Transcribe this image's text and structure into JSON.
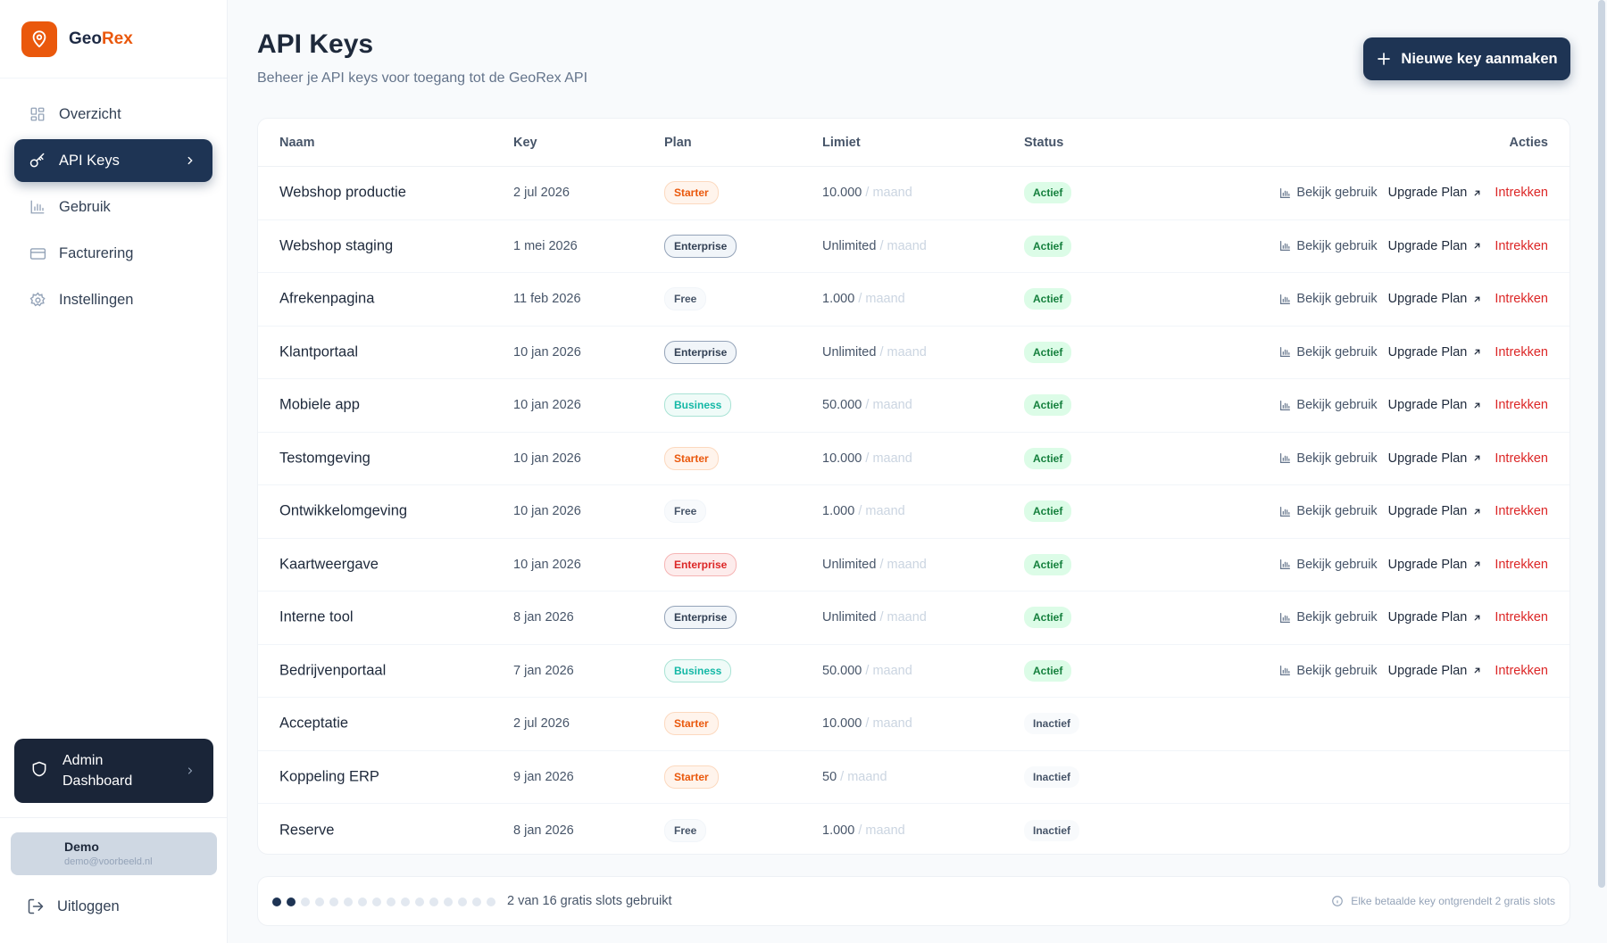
{
  "brand": {
    "name_part1": "Geo",
    "name_part2": "Rex",
    "accent": "#ea580c"
  },
  "sidebar": {
    "items": [
      {
        "label": "Overzicht",
        "icon": "grid-icon"
      },
      {
        "label": "API Keys",
        "icon": "key-icon",
        "active": true
      },
      {
        "label": "Gebruik",
        "icon": "bar-chart-icon"
      },
      {
        "label": "Facturering",
        "icon": "credit-card-icon"
      },
      {
        "label": "Instellingen",
        "icon": "gear-icon"
      }
    ],
    "admin": {
      "label": "Admin Dashboard",
      "icon": "shield-icon"
    },
    "user": {
      "name": "Demo",
      "email": "demo@voorbeeld.nl"
    },
    "logout": "Uitloggen"
  },
  "header": {
    "title": "API Keys",
    "subtitle": "Beheer je API keys voor toegang tot de GeoRex API",
    "new_button": "Nieuwe key aanmaken"
  },
  "table": {
    "columns": {
      "name": "Naam",
      "key": "Key",
      "plan": "Plan",
      "limit": "Limiet",
      "status": "Status",
      "actions": "Acties"
    },
    "per_label": "/ maand",
    "action_labels": {
      "usage": "Bekijk gebruik",
      "upgrade": "Upgrade Plan",
      "revoke": "Intrekken"
    },
    "rows": [
      {
        "name": "Webshop productie",
        "key": "2 jul 2026",
        "plan": "Starter",
        "plan_style": "starter",
        "limit": "10.000",
        "status": "Actief",
        "active": true
      },
      {
        "name": "Webshop staging",
        "key": "1 mei 2026",
        "plan": "Enterprise",
        "plan_style": "enterprise",
        "limit": "Unlimited",
        "status": "Actief",
        "active": true
      },
      {
        "name": "Afrekenpagina",
        "key": "11 feb 2026",
        "plan": "Free",
        "plan_style": "free",
        "limit": "1.000",
        "status": "Actief",
        "active": true
      },
      {
        "name": "Klantportaal",
        "key": "10 jan 2026",
        "plan": "Enterprise",
        "plan_style": "enterprise",
        "limit": "Unlimited",
        "status": "Actief",
        "active": true
      },
      {
        "name": "Mobiele app",
        "key": "10 jan 2026",
        "plan": "Business",
        "plan_style": "business",
        "limit": "50.000",
        "status": "Actief",
        "active": true
      },
      {
        "name": "Testomgeving",
        "key": "10 jan 2026",
        "plan": "Starter",
        "plan_style": "starter",
        "limit": "10.000",
        "status": "Actief",
        "active": true
      },
      {
        "name": "Ontwikkelomgeving",
        "key": "10 jan 2026",
        "plan": "Free",
        "plan_style": "free",
        "limit": "1.000",
        "status": "Actief",
        "active": true
      },
      {
        "name": "Kaartweergave",
        "key": "10 jan 2026",
        "plan": "Enterprise",
        "plan_style": "enterprise-red",
        "limit": "Unlimited",
        "status": "Actief",
        "active": true
      },
      {
        "name": "Interne tool",
        "key": "8 jan 2026",
        "plan": "Enterprise",
        "plan_style": "enterprise",
        "limit": "Unlimited",
        "status": "Actief",
        "active": true
      },
      {
        "name": "Bedrijvenportaal",
        "key": "7 jan 2026",
        "plan": "Business",
        "plan_style": "business",
        "limit": "50.000",
        "status": "Actief",
        "active": true
      },
      {
        "name": "Acceptatie",
        "key": "2 jul 2026",
        "plan": "Starter",
        "plan_style": "starter",
        "limit": "10.000",
        "status": "Inactief",
        "active": false
      },
      {
        "name": "Koppeling ERP",
        "key": "9 jan 2026",
        "plan": "Starter",
        "plan_style": "starter",
        "limit": "50",
        "status": "Inactief",
        "active": false
      },
      {
        "name": "Reserve",
        "key": "8 jan 2026",
        "plan": "Free",
        "plan_style": "free",
        "limit": "1.000",
        "status": "Inactief",
        "active": false
      }
    ]
  },
  "slots": {
    "used": 2,
    "total": 16,
    "text": "2 van 16 gratis slots gebruikt",
    "hint": "Elke betaalde key ontgrendelt 2 gratis slots"
  },
  "colors": {
    "primary": "#1e3454",
    "danger": "#dc2626",
    "success": "#15803d"
  }
}
